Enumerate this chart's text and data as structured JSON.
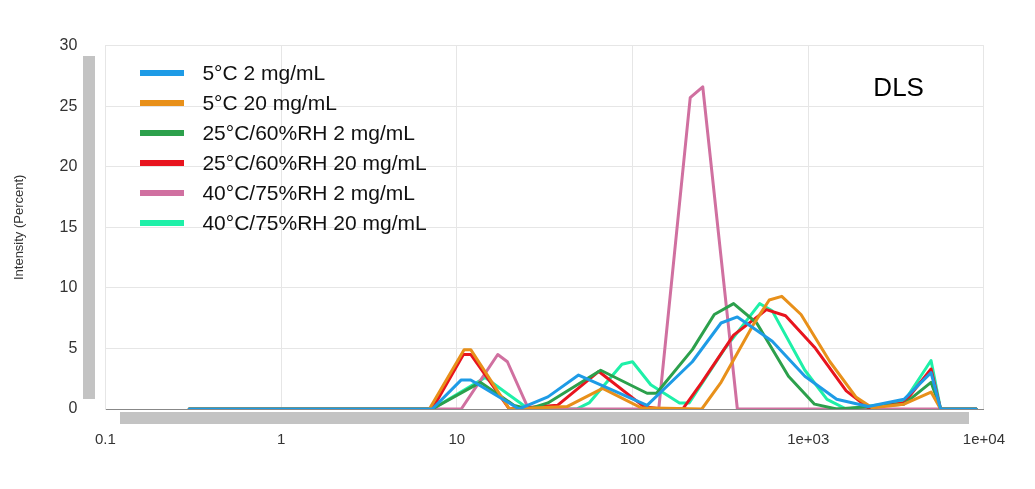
{
  "chart_data": {
    "type": "line",
    "ylabel": "Intensity (Percent)",
    "annotations": [
      "DLS"
    ],
    "log": "x",
    "grid": true,
    "legend": "top left",
    "marker": "none",
    "line_style": "solid",
    "xlim": [
      0.1,
      10000
    ],
    "xticks": [
      0.1,
      1,
      10,
      100,
      {
        "value": 1000,
        "label": "1e+03"
      },
      {
        "value": 10000,
        "label": "1e+04"
      }
    ],
    "ylim": [
      0,
      30
    ],
    "yticks": [
      0,
      5,
      10,
      15,
      20,
      25,
      30
    ],
    "series": [
      {
        "name": "5°C 2 mg/mL",
        "color": "#1e9be6",
        "x": [
          0.3,
          7.25,
          10.6,
          12,
          22.6,
          33,
          49.3,
          121,
          219,
          319,
          395,
          624,
          957,
          1451,
          2198,
          3508,
          5000,
          5666,
          9040
        ],
        "values": [
          0,
          0,
          2.4,
          2.4,
          0,
          1.0,
          2.8,
          0.3,
          3.9,
          7.1,
          7.6,
          5.6,
          2.7,
          0.8,
          0.2,
          0.8,
          3.0,
          0,
          0
        ]
      },
      {
        "name": "5°C 20 mg/mL",
        "color": "#e8901a",
        "x": [
          0.3,
          6.98,
          11,
          12,
          19.9,
          42.4,
          67.6,
          112,
          248,
          319,
          484,
          600,
          707,
          910,
          1329,
          1866,
          2312,
          3508,
          5000,
          5666,
          9040
        ],
        "values": [
          0,
          0,
          4.9,
          4.9,
          0,
          0.2,
          1.7,
          0.1,
          0,
          2.2,
          6.9,
          9.0,
          9.3,
          7.8,
          3.9,
          1.0,
          0.1,
          0.4,
          1.4,
          0,
          0
        ]
      },
      {
        "name": "25°C/60%RH 2 mg/mL",
        "color": "#2ca04c",
        "x": [
          0.3,
          7.25,
          13.6,
          21.2,
          25.6,
          33,
          65.9,
          121,
          137,
          219,
          292,
          376,
          509,
          772,
          1086,
          1451,
          3508,
          5000,
          5666,
          9040
        ],
        "values": [
          0,
          0,
          2.2,
          0.3,
          0,
          0.5,
          3.2,
          1.3,
          1.3,
          4.9,
          7.8,
          8.7,
          7.1,
          2.7,
          0.4,
          0,
          0.4,
          2.2,
          0,
          0
        ]
      },
      {
        "name": "25°C/60%RH 20 mg/mL",
        "color": "#e8141e",
        "x": [
          0.3,
          7.25,
          10.9,
          12,
          19.9,
          37.4,
          64.3,
          116,
          144,
          193,
          248,
          376,
          578,
          743,
          1086,
          1645,
          2198,
          3508,
          5000,
          5666,
          9040
        ],
        "values": [
          0,
          0,
          4.5,
          4.5,
          0,
          0.3,
          3.1,
          0.2,
          0,
          0,
          2.2,
          6.1,
          8.2,
          7.7,
          5.1,
          1.5,
          0.1,
          0.5,
          3.3,
          0,
          0
        ]
      },
      {
        "name": "40°C/75%RH 2 mg/mL",
        "color": "#d070a0",
        "x": [
          0.3,
          10.6,
          17.1,
          19.4,
          25.6,
          141,
          213,
          251,
          395,
          9040
        ],
        "values": [
          0,
          0,
          4.5,
          3.9,
          0,
          0,
          25.7,
          26.6,
          0,
          0
        ]
      },
      {
        "name": "40°C/75%RH 20 mg/mL",
        "color": "#1ef0a8",
        "x": [
          0.3,
          7.25,
          14.5,
          25.6,
          48,
          56.6,
          87.1,
          100,
          127,
          185,
          210,
          332,
          529,
          624,
          957,
          1279,
          1645,
          3508,
          5000,
          5666,
          9040
        ],
        "values": [
          0,
          0,
          2.6,
          0,
          0,
          0.5,
          3.7,
          3.9,
          2.0,
          0.5,
          0.5,
          4.9,
          8.7,
          8.1,
          3.2,
          0.8,
          0,
          0.6,
          4.0,
          0,
          0
        ]
      }
    ]
  }
}
